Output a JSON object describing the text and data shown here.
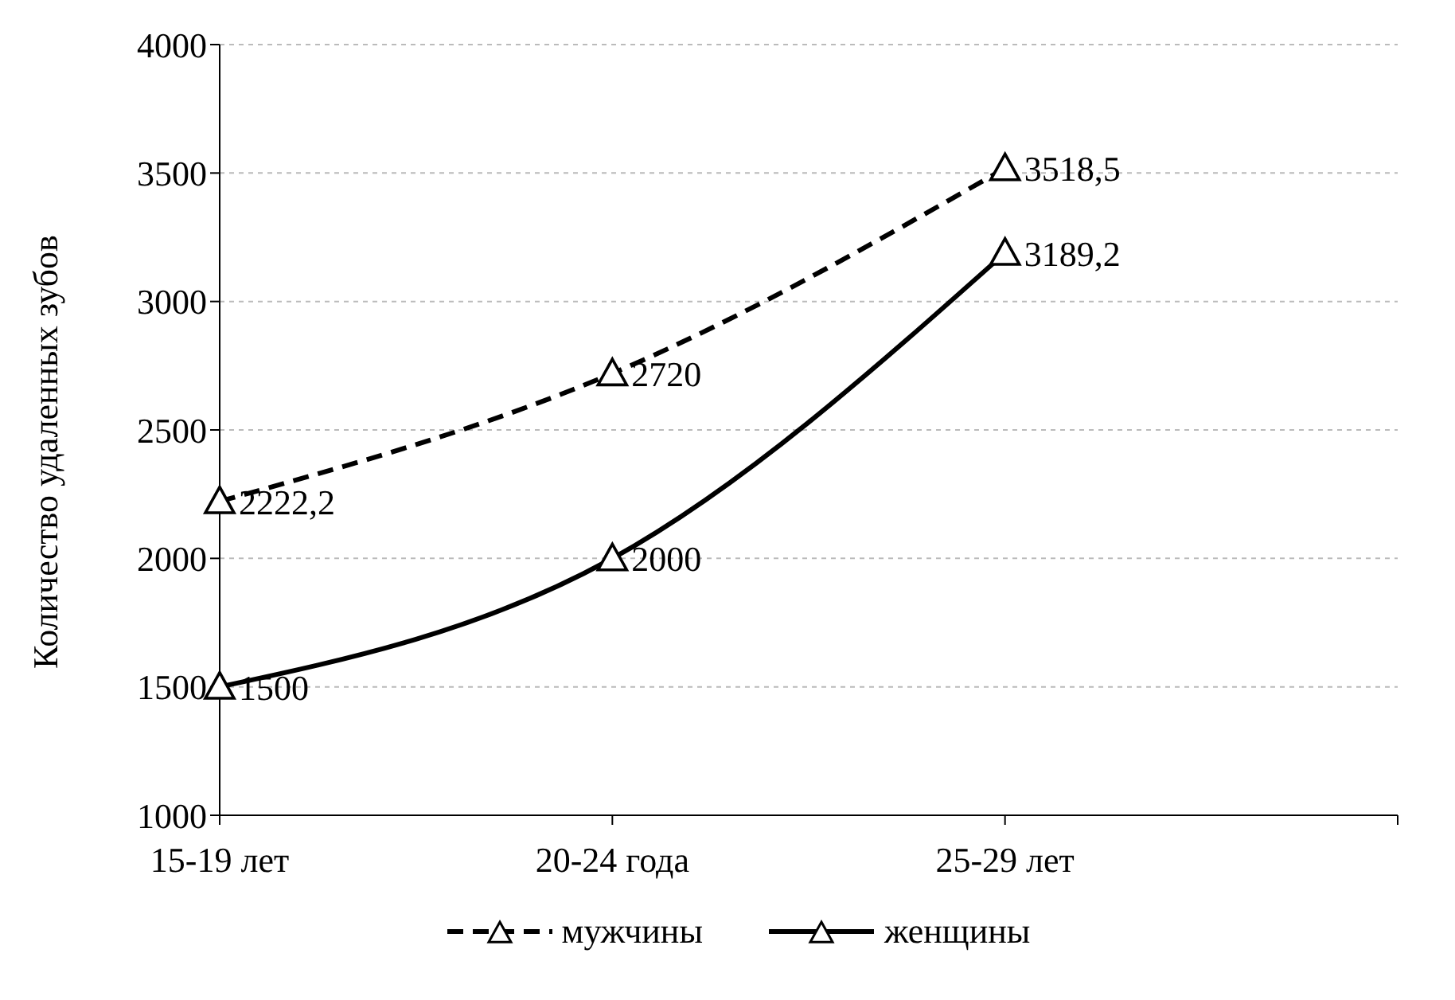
{
  "chart_data": {
    "type": "line",
    "ylabel": "Количество удаленных зубов",
    "categories": [
      "15-19 лет",
      "20-24 года",
      "25-29 лет",
      null
    ],
    "series": [
      {
        "name": "мужчины",
        "color": "#000000",
        "line_style": "dashed",
        "values": [
          2222.2,
          2720,
          3518.5,
          null
        ],
        "value_labels": [
          "2222,2",
          "2720",
          "3518,5",
          null
        ]
      },
      {
        "name": "женщины",
        "color": "#000000",
        "line_style": "solid",
        "values": [
          1500,
          2000,
          3189.2,
          null
        ],
        "value_labels": [
          "1500",
          "2000",
          "3189,2",
          null
        ]
      }
    ],
    "ylim": [
      1000,
      4000
    ],
    "yticks": [
      1000,
      1500,
      2000,
      2500,
      3000,
      3500,
      4000
    ],
    "grid": "y",
    "legend": "bottom",
    "marker": "triangle"
  }
}
